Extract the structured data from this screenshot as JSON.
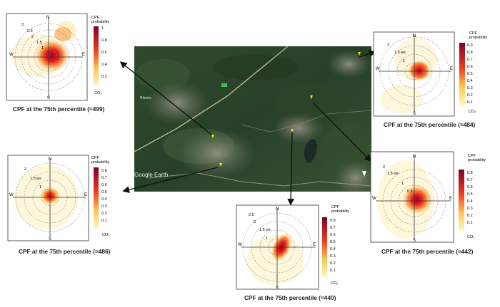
{
  "map": {
    "watermark": "Google Earth",
    "town_label": "Ribeiro"
  },
  "panels": [
    {
      "id": "p1",
      "caption": "CPF at the 75th percentile (=499)",
      "legend_title": "CPF\nprobability",
      "legend_ticks": [
        "1",
        "0.8",
        "0.6",
        "0.4",
        "0.2"
      ],
      "legend_unit": "CO₂",
      "compass": {
        "n": "N",
        "s": "S",
        "e": "E",
        "w": "W"
      },
      "rings": [
        "3",
        "2.5",
        "2",
        "1.5",
        "1"
      ]
    },
    {
      "id": "p2",
      "caption": "CPF at the 75th percentile (=484)",
      "legend_title": "CPF\nprobability",
      "legend_ticks": [
        "0.9",
        "0.8",
        "0.7",
        "0.6",
        "0.5",
        "0.4",
        "0.3",
        "0.2",
        "0.1"
      ],
      "legend_unit": "CO₂",
      "compass": {
        "n": "N",
        "s": "S",
        "e": "E",
        "w": "W"
      },
      "rings": [
        "2",
        "1.5 ws",
        "1"
      ]
    },
    {
      "id": "p3",
      "caption": "CPF at the 75th percentile (=486)",
      "legend_title": "CPF\nprobability",
      "legend_ticks": [
        "0.8",
        "0.7",
        "0.6",
        "0.5",
        "0.4",
        "0.3",
        "0.2",
        "0.1"
      ],
      "legend_unit": "CO₂",
      "compass": {
        "n": "N",
        "s": "S",
        "e": "E",
        "w": "W"
      },
      "rings": [
        "2",
        "1.5 ws",
        "1"
      ]
    },
    {
      "id": "p4",
      "caption": "CPF at the 75th percentile (=442)",
      "legend_title": "CPF\nprobability",
      "legend_ticks": [
        "0.8",
        "0.7",
        "0.6",
        "0.5",
        "0.4",
        "0.3",
        "0.2",
        "0.1"
      ],
      "legend_unit": "CO₂",
      "compass": {
        "n": "N",
        "s": "S",
        "e": "E",
        "w": "W"
      },
      "rings": [
        "2",
        "1.5 ws",
        "1",
        "0.5"
      ]
    },
    {
      "id": "p5",
      "caption": "CPF at the 75th percentile (=440)",
      "legend_title": "CPF\nprobability",
      "legend_ticks": [
        "0.8",
        "0.7",
        "0.6",
        "0.5",
        "0.4",
        "0.3",
        "0.2",
        "0.1"
      ],
      "legend_unit": "CO₂",
      "compass": {
        "n": "N",
        "s": "S",
        "e": "E",
        "w": "W"
      },
      "rings": [
        "2.5",
        "2",
        "1.5 ws",
        "1"
      ]
    }
  ]
}
